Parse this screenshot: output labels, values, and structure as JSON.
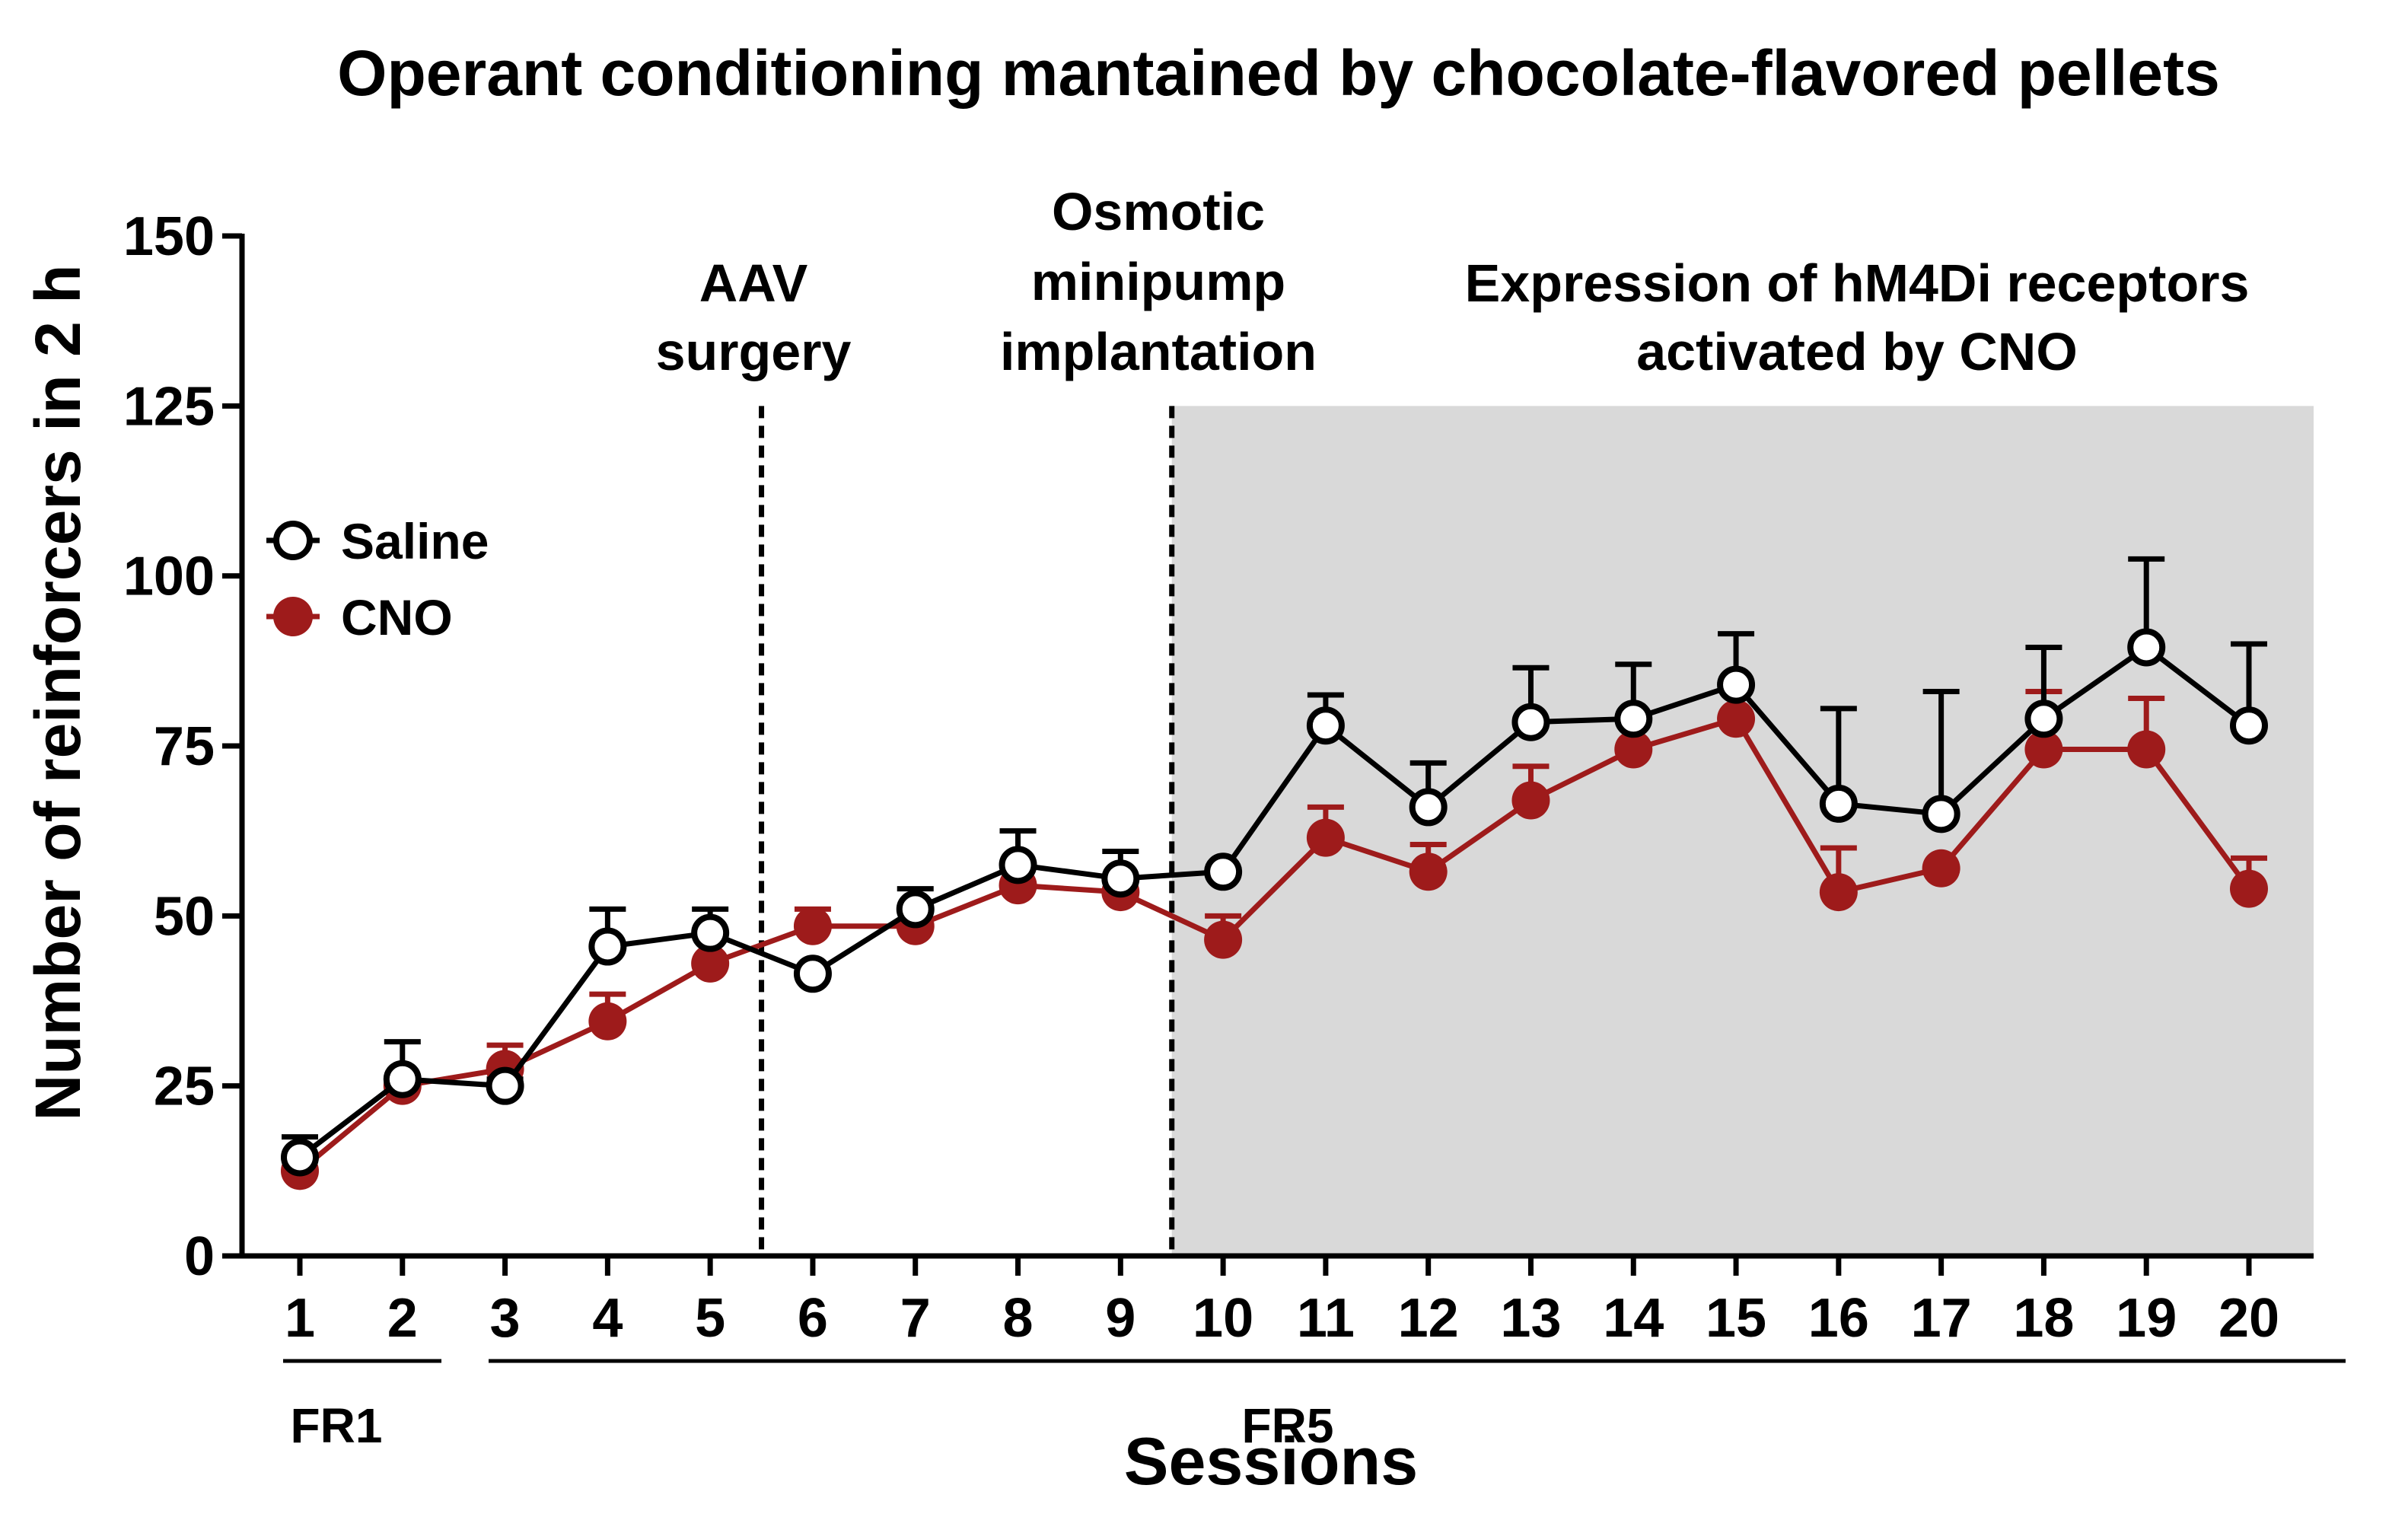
{
  "chart_data": {
    "type": "line",
    "title": "Operant conditioning mantained by chocolate-flavored pellets",
    "xlabel": "Sessions",
    "ylabel": "Number of reinforcers in 2 h",
    "categories": [
      "1",
      "2",
      "3",
      "4",
      "5",
      "6",
      "7",
      "8",
      "9",
      "10",
      "11",
      "12",
      "13",
      "14",
      "15",
      "16",
      "17",
      "18",
      "19",
      "20"
    ],
    "ylim": [
      0,
      150
    ],
    "yticks": [
      0,
      25,
      50,
      75,
      100,
      125,
      150
    ],
    "series": [
      {
        "name": "Saline",
        "color": "#000000",
        "marker": "open-circle",
        "values": [
          14.5,
          26,
          25,
          45.5,
          47.5,
          41.5,
          51,
          57.5,
          55.5,
          56.5,
          78,
          66,
          78.5,
          79,
          84,
          66.5,
          65,
          79,
          89.5,
          78
        ],
        "error": [
          3,
          5.5,
          1,
          5.5,
          3.5,
          0,
          3,
          5,
          4,
          0,
          4.5,
          6.5,
          8,
          8,
          7.5,
          14,
          18,
          10.5,
          13,
          12
        ]
      },
      {
        "name": "CNO",
        "color": "#9e1b1b",
        "marker": "filled-circle",
        "values": [
          12.5,
          25,
          27.5,
          34.5,
          43,
          48.5,
          48.5,
          54.5,
          53.5,
          46.5,
          61.5,
          56.5,
          67,
          74.5,
          79,
          53.5,
          57,
          74.5,
          74.5,
          54
        ],
        "error": [
          0,
          0,
          3.5,
          4,
          0,
          2.5,
          0,
          0,
          0,
          3.5,
          4.5,
          4,
          5,
          0,
          0,
          6.5,
          0,
          8.5,
          7.5,
          4.5
        ]
      }
    ],
    "shaded_region": {
      "from_session": 9.5,
      "to_session": 20.5,
      "y_max": 125,
      "color": "#d9d9d9"
    },
    "vertical_lines": [
      5.5,
      9.5
    ],
    "annotations": [
      {
        "lines": [
          "AAV",
          "surgery"
        ]
      },
      {
        "lines": [
          "Osmotic",
          "minipump",
          "implantation"
        ]
      },
      {
        "lines": [
          "Expression of hM4Di receptors",
          "activated by CNO"
        ]
      }
    ],
    "phases": [
      {
        "label": "FR1",
        "from": 1,
        "to": 2
      },
      {
        "label": "FR5",
        "from": 3,
        "to": 20
      }
    ],
    "legend": {
      "position": "left",
      "entries": [
        "Saline",
        "CNO"
      ]
    },
    "grid": false
  }
}
